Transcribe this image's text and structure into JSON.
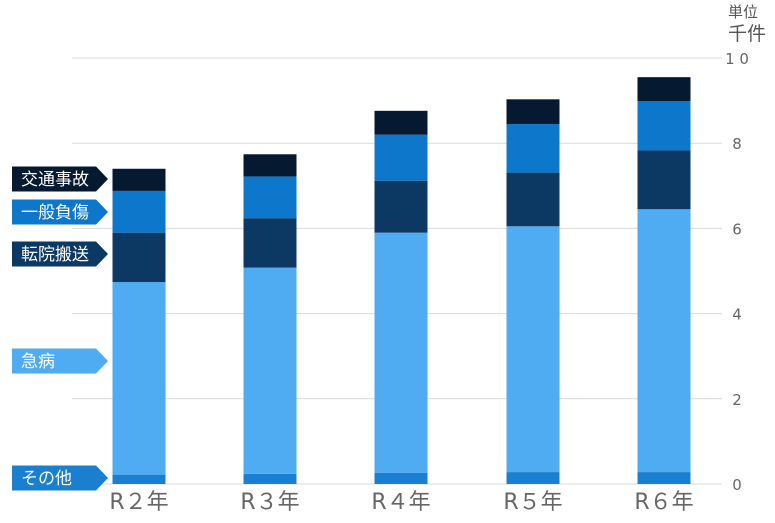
{
  "unit": {
    "line1": "単位",
    "line2": "千件"
  },
  "chart_data": {
    "type": "bar",
    "stacked": true,
    "categories": [
      "R２年",
      "R３年",
      "R４年",
      "R５年",
      "R６年"
    ],
    "yticks": [
      "0",
      "2",
      "4",
      "6",
      "8",
      "1 0"
    ],
    "ylim": [
      0,
      10
    ],
    "grid": true,
    "legend_position": "left",
    "series": [
      {
        "name": "その他",
        "color": "#1b7fd0",
        "values": [
          0.22,
          0.24,
          0.26,
          0.28,
          0.28
        ]
      },
      {
        "name": "急病",
        "color": "#4fabf2",
        "values": [
          4.52,
          4.84,
          5.64,
          5.77,
          6.17
        ]
      },
      {
        "name": "転院搬送",
        "color": "#0b3963",
        "values": [
          1.16,
          1.16,
          1.22,
          1.26,
          1.38
        ]
      },
      {
        "name": "一般負傷",
        "color": "#0c77cb",
        "values": [
          0.98,
          0.98,
          1.08,
          1.14,
          1.16
        ]
      },
      {
        "name": "交通事故",
        "color": "#051a30",
        "values": [
          0.52,
          0.52,
          0.56,
          0.58,
          0.56
        ]
      }
    ],
    "legend_order": [
      "交通事故",
      "一般負傷",
      "転院搬送",
      "急病",
      "その他"
    ]
  }
}
